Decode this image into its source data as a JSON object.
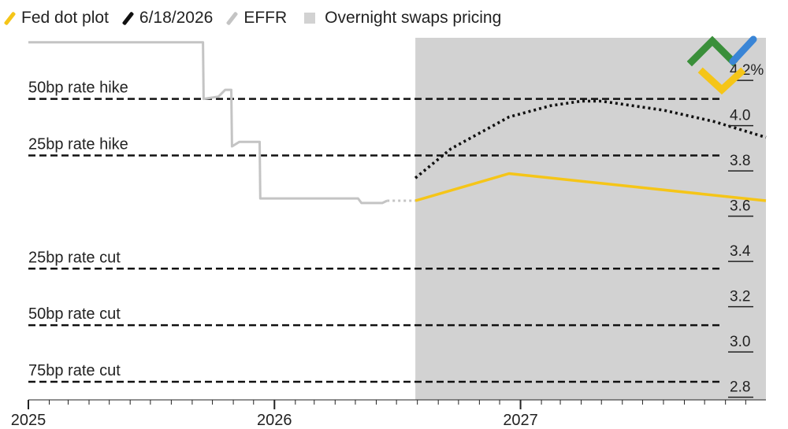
{
  "legend": [
    {
      "label": "Fed dot plot",
      "color": "#f5c518",
      "kind": "line"
    },
    {
      "label": "6/18/2026",
      "color": "#111111",
      "kind": "line"
    },
    {
      "label": "EFFR",
      "color": "#c4c4c4",
      "kind": "line"
    },
    {
      "label": "Overnight swaps pricing",
      "color": "#d2d2d2",
      "kind": "box"
    }
  ],
  "chart_data": {
    "type": "line",
    "y_unit": "%",
    "ylim": [
      2.75,
      4.35
    ],
    "xlim": [
      "2025-01-01",
      "2027-12-31"
    ],
    "x_ticks": [
      "2025",
      "2026",
      "2027"
    ],
    "y_ticks": [
      "4.2%",
      "4.0",
      "3.8",
      "3.6",
      "3.4",
      "3.2",
      "3.0",
      "2.8"
    ],
    "shaded_region": {
      "label": "Overnight swaps pricing",
      "x_start": "2026-07-29",
      "x_end": "2027-12-31"
    },
    "reference_lines": [
      {
        "label": "50bp rate hike",
        "y": 4.08
      },
      {
        "label": "25bp rate hike",
        "y": 3.83
      },
      {
        "label": "25bp rate cut",
        "y": 3.33
      },
      {
        "label": "50bp rate cut",
        "y": 3.08
      },
      {
        "label": "75bp rate cut",
        "y": 2.83
      }
    ],
    "series": [
      {
        "name": "EFFR",
        "color": "#c4c4c4",
        "style": "step",
        "points": [
          [
            "2025-01-01",
            4.33
          ],
          [
            "2025-09-17",
            4.33
          ],
          [
            "2025-09-18",
            4.08
          ],
          [
            "2025-10-10",
            4.09
          ],
          [
            "2025-10-20",
            4.12
          ],
          [
            "2025-10-29",
            4.12
          ],
          [
            "2025-10-30",
            3.87
          ],
          [
            "2025-11-10",
            3.89
          ],
          [
            "2025-12-10",
            3.89
          ],
          [
            "2025-12-11",
            3.64
          ],
          [
            "2026-05-05",
            3.64
          ],
          [
            "2026-05-10",
            3.62
          ],
          [
            "2026-06-10",
            3.62
          ],
          [
            "2026-06-17",
            3.63
          ]
        ]
      },
      {
        "name": "EFFR (projected)",
        "color": "#c4c4c4",
        "style": "dotted",
        "points": [
          [
            "2026-06-17",
            3.63
          ],
          [
            "2026-07-29",
            3.63
          ]
        ]
      },
      {
        "name": "Fed dot plot",
        "color": "#f5c518",
        "style": "solid",
        "points": [
          [
            "2026-07-29",
            3.63
          ],
          [
            "2026-12-15",
            3.75
          ],
          [
            "2027-12-31",
            3.63
          ]
        ]
      },
      {
        "name": "6/18/2026",
        "color": "#111111",
        "style": "dotted",
        "points": [
          [
            "2026-07-29",
            3.73
          ],
          [
            "2026-09-20",
            3.86
          ],
          [
            "2026-12-15",
            4.0
          ],
          [
            "2027-02-15",
            4.05
          ],
          [
            "2027-04-01",
            4.07
          ],
          [
            "2027-05-01",
            4.07
          ],
          [
            "2027-08-01",
            4.03
          ],
          [
            "2027-10-15",
            3.98
          ],
          [
            "2027-12-31",
            3.91
          ]
        ]
      }
    ]
  }
}
